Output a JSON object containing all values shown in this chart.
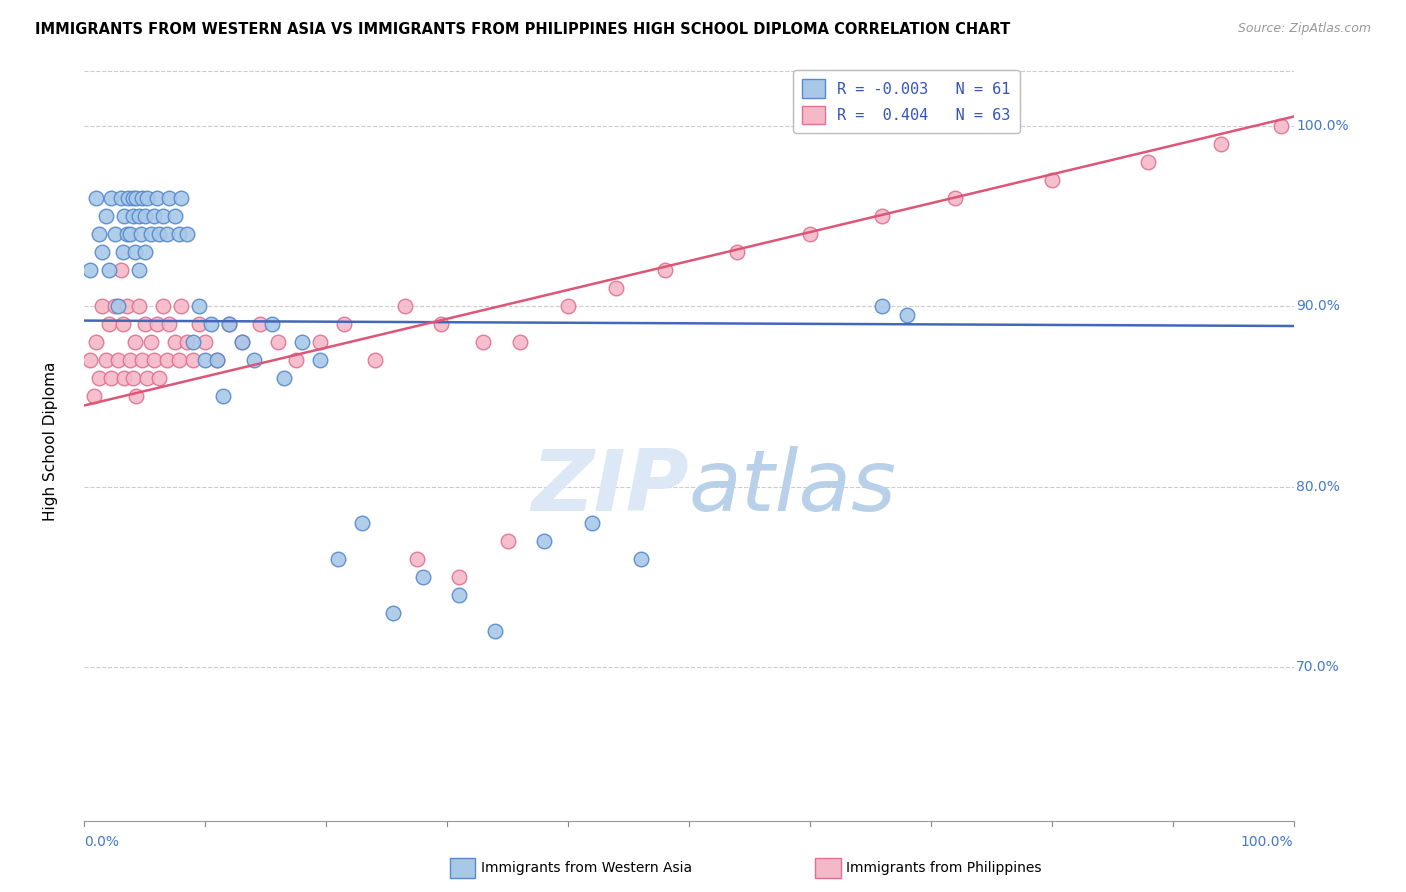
{
  "title": "IMMIGRANTS FROM WESTERN ASIA VS IMMIGRANTS FROM PHILIPPINES HIGH SCHOOL DIPLOMA CORRELATION CHART",
  "source": "Source: ZipAtlas.com",
  "ylabel": "High School Diploma",
  "xlim": [
    0.0,
    1.0
  ],
  "ylim": [
    0.615,
    1.035
  ],
  "blue_color": "#a8c8e8",
  "pink_color": "#f4b8c8",
  "blue_edge_color": "#5588cc",
  "pink_edge_color": "#e07090",
  "blue_line_color": "#4466bb",
  "pink_line_color": "#dd5577",
  "watermark_color": "#dce8f5",
  "grid_color": "#cccccc",
  "right_tick_color": "#4477cc",
  "right_yticks": [
    0.7,
    0.8,
    0.9,
    1.0
  ],
  "right_yticklabels": [
    "70.0%",
    "80.0%",
    "90.0%",
    "100.0%"
  ],
  "blue_x": [
    0.005,
    0.01,
    0.012,
    0.015,
    0.018,
    0.02,
    0.022,
    0.025,
    0.028,
    0.03,
    0.032,
    0.033,
    0.035,
    0.036,
    0.038,
    0.04,
    0.04,
    0.042,
    0.043,
    0.045,
    0.045,
    0.047,
    0.048,
    0.05,
    0.05,
    0.052,
    0.055,
    0.058,
    0.06,
    0.062,
    0.065,
    0.068,
    0.07,
    0.075,
    0.078,
    0.08,
    0.085,
    0.09,
    0.095,
    0.1,
    0.105,
    0.11,
    0.115,
    0.12,
    0.13,
    0.14,
    0.155,
    0.165,
    0.18,
    0.195,
    0.21,
    0.23,
    0.255,
    0.28,
    0.31,
    0.34,
    0.38,
    0.42,
    0.46,
    0.66,
    0.68
  ],
  "blue_y": [
    0.92,
    0.96,
    0.94,
    0.93,
    0.95,
    0.92,
    0.96,
    0.94,
    0.9,
    0.96,
    0.93,
    0.95,
    0.94,
    0.96,
    0.94,
    0.95,
    0.96,
    0.93,
    0.96,
    0.95,
    0.92,
    0.94,
    0.96,
    0.95,
    0.93,
    0.96,
    0.94,
    0.95,
    0.96,
    0.94,
    0.95,
    0.94,
    0.96,
    0.95,
    0.94,
    0.96,
    0.94,
    0.88,
    0.9,
    0.87,
    0.89,
    0.87,
    0.85,
    0.89,
    0.88,
    0.87,
    0.89,
    0.86,
    0.88,
    0.87,
    0.76,
    0.78,
    0.73,
    0.75,
    0.74,
    0.72,
    0.77,
    0.78,
    0.76,
    0.9,
    0.895
  ],
  "pink_x": [
    0.005,
    0.008,
    0.01,
    0.012,
    0.015,
    0.018,
    0.02,
    0.022,
    0.025,
    0.028,
    0.03,
    0.032,
    0.033,
    0.035,
    0.038,
    0.04,
    0.042,
    0.043,
    0.045,
    0.048,
    0.05,
    0.052,
    0.055,
    0.058,
    0.06,
    0.062,
    0.065,
    0.068,
    0.07,
    0.075,
    0.078,
    0.08,
    0.085,
    0.09,
    0.095,
    0.1,
    0.11,
    0.12,
    0.13,
    0.145,
    0.16,
    0.175,
    0.195,
    0.215,
    0.24,
    0.265,
    0.295,
    0.33,
    0.36,
    0.4,
    0.44,
    0.48,
    0.54,
    0.6,
    0.66,
    0.72,
    0.8,
    0.88,
    0.94,
    0.99,
    0.275,
    0.31,
    0.35
  ],
  "pink_y": [
    0.87,
    0.85,
    0.88,
    0.86,
    0.9,
    0.87,
    0.89,
    0.86,
    0.9,
    0.87,
    0.92,
    0.89,
    0.86,
    0.9,
    0.87,
    0.86,
    0.88,
    0.85,
    0.9,
    0.87,
    0.89,
    0.86,
    0.88,
    0.87,
    0.89,
    0.86,
    0.9,
    0.87,
    0.89,
    0.88,
    0.87,
    0.9,
    0.88,
    0.87,
    0.89,
    0.88,
    0.87,
    0.89,
    0.88,
    0.89,
    0.88,
    0.87,
    0.88,
    0.89,
    0.87,
    0.9,
    0.89,
    0.88,
    0.88,
    0.9,
    0.91,
    0.92,
    0.93,
    0.94,
    0.95,
    0.96,
    0.97,
    0.98,
    0.99,
    1.0,
    0.76,
    0.75,
    0.77
  ],
  "blue_trend_x": [
    0.0,
    1.0
  ],
  "blue_trend_y": [
    0.892,
    0.889
  ],
  "pink_trend_x": [
    0.0,
    1.0
  ],
  "pink_trend_y": [
    0.845,
    1.005
  ]
}
